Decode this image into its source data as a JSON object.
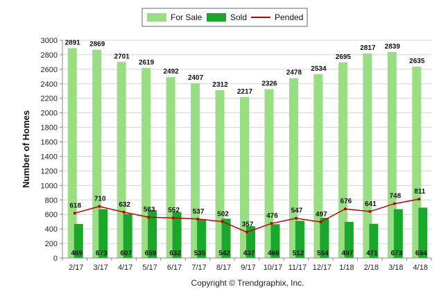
{
  "chart_data": {
    "type": "bar",
    "categories": [
      "2/17",
      "3/17",
      "4/17",
      "5/17",
      "6/17",
      "7/17",
      "8/17",
      "9/17",
      "10/17",
      "11/17",
      "12/17",
      "1/18",
      "2/18",
      "3/18",
      "4/18"
    ],
    "series": [
      {
        "name": "For Sale",
        "type": "bar",
        "color": "#9ade84",
        "values": [
          2891,
          2869,
          2701,
          2619,
          2492,
          2407,
          2312,
          2217,
          2326,
          2478,
          2534,
          2695,
          2817,
          2839,
          2635
        ]
      },
      {
        "name": "Sold",
        "type": "bar",
        "color": "#1aa82c",
        "values": [
          469,
          673,
          607,
          659,
          632,
          535,
          542,
          437,
          466,
          512,
          554,
          497,
          471,
          673,
          694
        ]
      },
      {
        "name": "Pended",
        "type": "line",
        "color": "#c00000",
        "values": [
          618,
          710,
          632,
          563,
          552,
          537,
          502,
          357,
          476,
          547,
          497,
          676,
          641,
          748,
          811
        ]
      }
    ],
    "title": "",
    "xlabel": "",
    "ylabel": "Number of Homes",
    "ylim": [
      0,
      3000
    ],
    "yticks": [
      0,
      200,
      400,
      600,
      800,
      1000,
      1200,
      1400,
      1600,
      1800,
      2000,
      2200,
      2400,
      2600,
      2800,
      3000
    ],
    "grid": true,
    "legend": "top-center"
  },
  "footer": {
    "copyright": "Copyright © Trendgraphix, Inc."
  }
}
